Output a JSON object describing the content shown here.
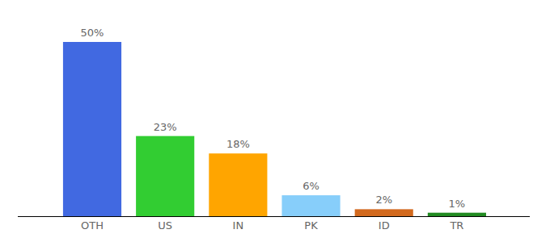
{
  "chart_data": {
    "type": "bar",
    "categories": [
      "OTH",
      "US",
      "IN",
      "PK",
      "ID",
      "TR"
    ],
    "values": [
      50,
      23,
      18,
      6,
      2,
      1
    ],
    "value_labels": [
      "50%",
      "23%",
      "18%",
      "6%",
      "2%",
      "1%"
    ],
    "colors": [
      "#4169e1",
      "#32cd32",
      "#ffa500",
      "#87cefa",
      "#d2691e",
      "#228b22"
    ],
    "ylim": [
      0,
      50
    ],
    "data_labels": true,
    "tick_labels": "x"
  }
}
